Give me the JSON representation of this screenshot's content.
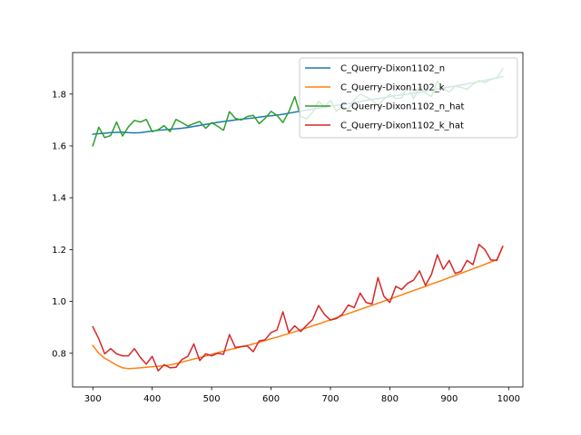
{
  "chart_data": {
    "type": "line",
    "title": "",
    "xlabel": "",
    "ylabel": "",
    "xlim": [
      266,
      1024
    ],
    "ylim": [
      0.67,
      1.96
    ],
    "xticks": [
      300,
      400,
      500,
      600,
      700,
      800,
      900,
      1000
    ],
    "xtick_labels": [
      "300",
      "400",
      "500",
      "600",
      "700",
      "800",
      "900",
      "1000"
    ],
    "yticks": [
      0.8,
      1.0,
      1.2,
      1.4,
      1.6,
      1.8
    ],
    "ytick_labels": [
      "0.8",
      "1.0",
      "1.2",
      "1.4",
      "1.6",
      "1.8"
    ],
    "grid": false,
    "legend_position": "top-right",
    "x": [
      300,
      310,
      320,
      330,
      340,
      350,
      360,
      370,
      380,
      390,
      400,
      410,
      420,
      430,
      440,
      450,
      460,
      470,
      480,
      490,
      500,
      510,
      520,
      530,
      540,
      550,
      560,
      570,
      580,
      590,
      600,
      610,
      620,
      630,
      640,
      650,
      660,
      670,
      680,
      690,
      700,
      710,
      720,
      730,
      740,
      750,
      760,
      770,
      780,
      790,
      800,
      810,
      820,
      830,
      840,
      850,
      860,
      870,
      880,
      890,
      900,
      910,
      920,
      930,
      940,
      950,
      960,
      970,
      980,
      990
    ],
    "series": [
      {
        "name": "C_Querry-Dixon1102_n",
        "color": "#1f77b4",
        "values": [
          1.645,
          1.647,
          1.649,
          1.651,
          1.652,
          1.653,
          1.651,
          1.65,
          1.651,
          1.654,
          1.657,
          1.66,
          1.662,
          1.664,
          1.666,
          1.668,
          1.671,
          1.675,
          1.679,
          1.683,
          1.687,
          1.691,
          1.694,
          1.697,
          1.7,
          1.703,
          1.705,
          1.708,
          1.711,
          1.714,
          1.716,
          1.719,
          1.722,
          1.726,
          1.73,
          1.734,
          1.738,
          1.742,
          1.746,
          1.749,
          1.753,
          1.756,
          1.76,
          1.763,
          1.767,
          1.771,
          1.775,
          1.779,
          1.782,
          1.786,
          1.79,
          1.794,
          1.797,
          1.8,
          1.804,
          1.807,
          1.811,
          1.815,
          1.819,
          1.823,
          1.827,
          1.831,
          1.835,
          1.839,
          1.843,
          1.848,
          1.853,
          1.858,
          1.862,
          1.867
        ]
      },
      {
        "name": "C_Querry-Dixon1102_k",
        "color": "#ff7f0e",
        "values": [
          0.83,
          0.8,
          0.781,
          0.768,
          0.754,
          0.744,
          0.741,
          0.742,
          0.744,
          0.746,
          0.748,
          0.75,
          0.752,
          0.755,
          0.76,
          0.766,
          0.772,
          0.778,
          0.783,
          0.789,
          0.796,
          0.802,
          0.808,
          0.814,
          0.819,
          0.825,
          0.83,
          0.836,
          0.842,
          0.849,
          0.856,
          0.862,
          0.869,
          0.876,
          0.883,
          0.891,
          0.898,
          0.906,
          0.913,
          0.921,
          0.929,
          0.937,
          0.945,
          0.953,
          0.961,
          0.969,
          0.977,
          0.985,
          0.993,
          1.001,
          1.009,
          1.017,
          1.025,
          1.034,
          1.042,
          1.05,
          1.058,
          1.067,
          1.075,
          1.083,
          1.092,
          1.1,
          1.109,
          1.117,
          1.126,
          1.134,
          1.143,
          1.152,
          1.161,
          1.21
        ]
      },
      {
        "name": "C_Querry-Dixon1102_n_hat",
        "color": "#2ca02c",
        "values": [
          1.6,
          1.672,
          1.632,
          1.64,
          1.692,
          1.638,
          1.674,
          1.698,
          1.692,
          1.702,
          1.655,
          1.662,
          1.678,
          1.655,
          1.702,
          1.69,
          1.676,
          1.686,
          1.694,
          1.668,
          1.69,
          1.676,
          1.66,
          1.732,
          1.706,
          1.7,
          1.713,
          1.718,
          1.686,
          1.706,
          1.733,
          1.718,
          1.69,
          1.732,
          1.79,
          1.714,
          1.704,
          1.73,
          1.772,
          1.75,
          1.776,
          1.734,
          1.752,
          1.74,
          1.778,
          1.8,
          1.79,
          1.776,
          1.756,
          1.78,
          1.798,
          1.782,
          1.786,
          1.83,
          1.782,
          1.828,
          1.804,
          1.79,
          1.85,
          1.82,
          1.808,
          1.83,
          1.826,
          1.818,
          1.838,
          1.852,
          1.844,
          1.856,
          1.862,
          1.898
        ]
      },
      {
        "name": "C_Querry-Dixon1102_k_hat",
        "color": "#d62728",
        "values": [
          0.902,
          0.856,
          0.798,
          0.818,
          0.798,
          0.79,
          0.79,
          0.818,
          0.784,
          0.758,
          0.788,
          0.732,
          0.756,
          0.744,
          0.746,
          0.776,
          0.788,
          0.836,
          0.772,
          0.798,
          0.79,
          0.8,
          0.796,
          0.872,
          0.822,
          0.826,
          0.828,
          0.806,
          0.848,
          0.852,
          0.88,
          0.89,
          0.96,
          0.88,
          0.906,
          0.884,
          0.908,
          0.93,
          0.984,
          0.95,
          0.928,
          0.934,
          0.95,
          0.986,
          0.976,
          1.032,
          0.996,
          0.99,
          1.092,
          1.02,
          0.996,
          1.058,
          1.046,
          1.07,
          1.082,
          1.118,
          1.062,
          1.104,
          1.18,
          1.124,
          1.158,
          1.108,
          1.116,
          1.158,
          1.142,
          1.22,
          1.2,
          1.16,
          1.158,
          1.212
        ]
      }
    ]
  }
}
